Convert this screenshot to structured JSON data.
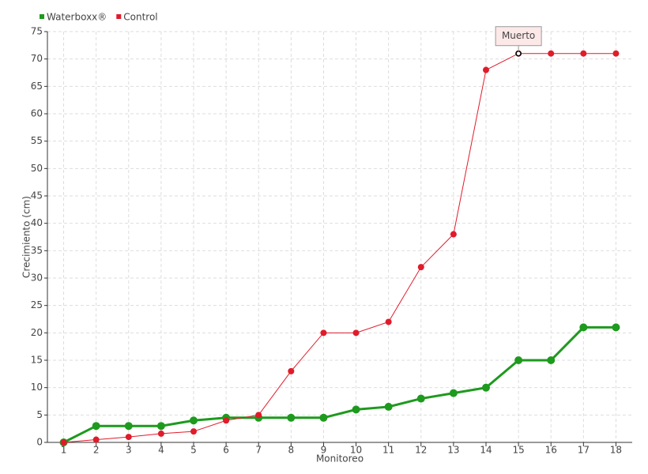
{
  "chart_data": {
    "type": "line",
    "x_label": "Monitoreo",
    "y_label": "Crecimiento (cm)",
    "categories": [
      "1",
      "2",
      "3",
      "4",
      "5",
      "6",
      "7",
      "8",
      "9",
      "10",
      "11",
      "12",
      "13",
      "14",
      "15",
      "16",
      "17",
      "18"
    ],
    "series": [
      {
        "name": "Waterboxx®",
        "color": "#1e9a1e",
        "values": [
          0,
          3,
          3,
          3,
          4,
          4.5,
          4.5,
          4.5,
          4.5,
          6,
          6.5,
          8,
          9,
          10,
          15,
          15,
          21,
          21
        ]
      },
      {
        "name": "Control",
        "color": "#e01b2a",
        "values": [
          0,
          0.5,
          1,
          1.6,
          2,
          4,
          5,
          13,
          20,
          20,
          22,
          32,
          38,
          68,
          71,
          71,
          71,
          71
        ],
        "annotations": [
          {
            "x": "15",
            "text": "Muerto"
          }
        ]
      }
    ],
    "ylim": [
      0,
      75
    ],
    "yticks": [
      0,
      5,
      10,
      15,
      20,
      25,
      30,
      35,
      40,
      45,
      50,
      55,
      60,
      65,
      70,
      75
    ],
    "grid": true,
    "legend": "top-left"
  }
}
